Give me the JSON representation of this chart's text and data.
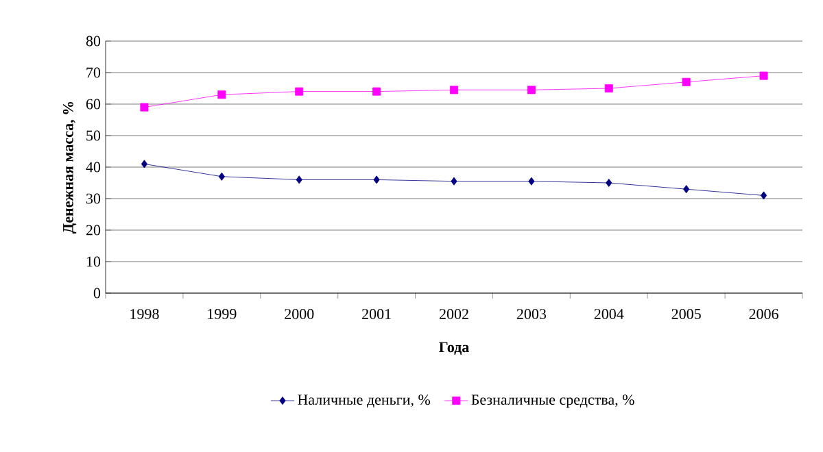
{
  "chart_data": {
    "type": "line",
    "xlabel": "Года",
    "ylabel": "Денежная масса, %",
    "categories": [
      "1998",
      "1999",
      "2000",
      "2001",
      "2002",
      "2003",
      "2004",
      "2005",
      "2006"
    ],
    "series": [
      {
        "name": "Наличные деньги, %",
        "color": "#000080",
        "marker": "diamond",
        "values": [
          41,
          37,
          36,
          36,
          35.5,
          35.5,
          35,
          33,
          31
        ]
      },
      {
        "name": "Безналичные средства, %",
        "color": "#ff00ff",
        "marker": "square",
        "values": [
          59,
          63,
          64,
          64,
          64.5,
          64.5,
          65,
          67,
          69
        ]
      }
    ],
    "ylim": [
      0,
      80
    ],
    "yticks": [
      0,
      10,
      20,
      30,
      40,
      50,
      60,
      70,
      80
    ],
    "grid": "y",
    "legend": "bottom"
  }
}
